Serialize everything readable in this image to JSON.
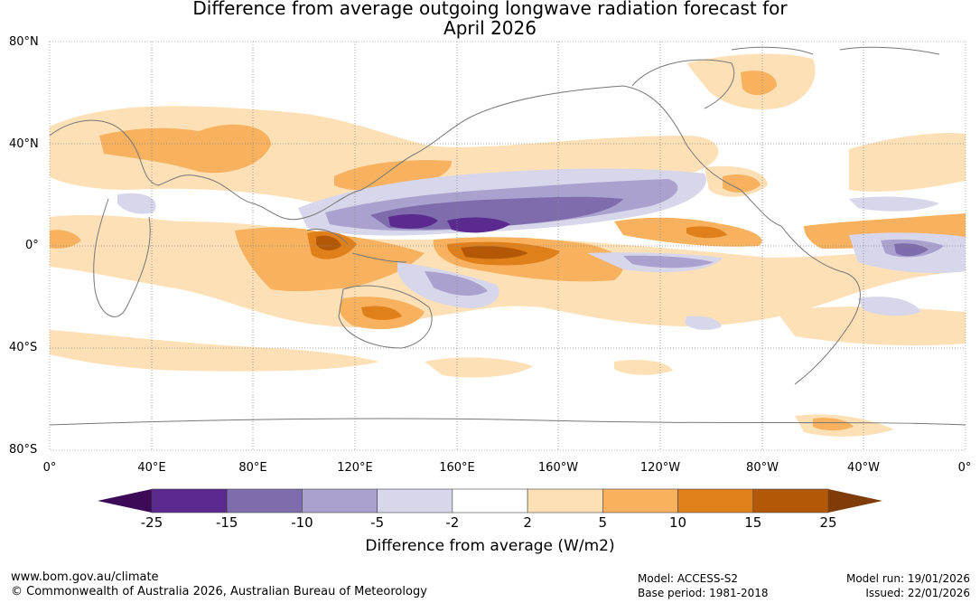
{
  "title": {
    "line1": "Difference from average outgoing longwave radiation forecast for",
    "line2": "April 2026"
  },
  "map": {
    "lat_labels": [
      "80°N",
      "40°N",
      "0°",
      "40°S",
      "80°S"
    ],
    "lon_labels": [
      "0°",
      "40°E",
      "80°E",
      "120°E",
      "160°E",
      "160°W",
      "120°W",
      "80°W",
      "40°W",
      "0°"
    ]
  },
  "colorbar": {
    "label": "Difference from average (W/m2)",
    "ticks": [
      "-25",
      "-15",
      "-10",
      "-5",
      "-2",
      "2",
      "5",
      "10",
      "15",
      "25"
    ],
    "colors": [
      "#3d0a57",
      "#5a2a8e",
      "#7e6cac",
      "#aaa1cf",
      "#d7d6ea",
      "#ffffff",
      "#fde0b6",
      "#f8b25f",
      "#e0801a",
      "#b35807",
      "#7f3b08"
    ]
  },
  "footer": {
    "url": "www.bom.gov.au/climate",
    "copyright": "© Commonwealth of Australia 2026, Australian Bureau of Meteorology",
    "model": "Model: ACCESS-S2",
    "base_period": "Base period: 1981-2018",
    "model_run": "Model run: 19/01/2026",
    "issued": "Issued: 22/01/2026"
  }
}
